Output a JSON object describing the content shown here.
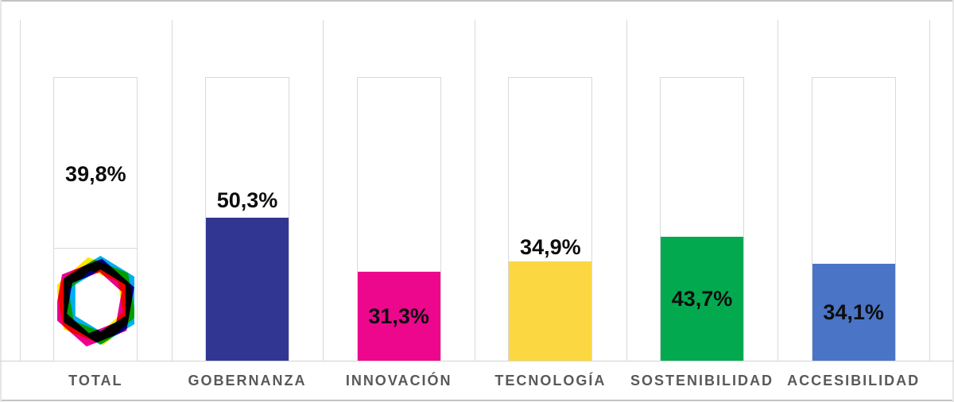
{
  "chart_data": {
    "type": "bar",
    "title": "",
    "xlabel": "",
    "ylabel": "",
    "ylim": [
      0,
      100
    ],
    "unit": "%",
    "decimal_separator": ",",
    "legend": "none",
    "grid": "column dividers with 100% outline box per category",
    "categories": [
      "TOTAL",
      "GOBERNANZA",
      "INNOVACIÓN",
      "TECNOLOGÍA",
      "SOSTENIBILIDAD",
      "ACCESIBILIDAD"
    ],
    "values": [
      39.8,
      50.3,
      31.3,
      34.9,
      43.7,
      34.1
    ],
    "value_labels": [
      "39,8%",
      "50,3%",
      "31,3%",
      "34,9%",
      "43,7%",
      "34,1%"
    ],
    "bars": [
      {
        "category": "TOTAL",
        "value": 39.8,
        "label": "39,8%",
        "fill": "logo",
        "label_placement": "above",
        "label_gap": 79
      },
      {
        "category": "GOBERNANZA",
        "value": 50.3,
        "label": "50,3%",
        "fill": "#323693",
        "label_placement": "above",
        "label_gap": 8
      },
      {
        "category": "INNOVACIÓN",
        "value": 31.3,
        "label": "31,3%",
        "fill": "#EC078D",
        "label_placement": "inside"
      },
      {
        "category": "TECNOLOGÍA",
        "value": 34.9,
        "label": "34,9%",
        "fill": "#FBD841",
        "label_placement": "above",
        "label_gap": 4
      },
      {
        "category": "SOSTENIBILIDAD",
        "value": 43.7,
        "label": "43,7%",
        "fill": "#03A94F",
        "label_placement": "inside"
      },
      {
        "category": "ACCESIBILIDAD",
        "value": 34.1,
        "label": "34,1%",
        "fill": "#4A74C6",
        "label_placement": "inside"
      }
    ]
  },
  "logo": {
    "name": "hexagon-ribbon-logo",
    "description": "hexagonal ring of overlapping cyan, magenta and yellow ribbons shown in the TOTAL column",
    "colors": {
      "cyan": "#00AEEF",
      "magenta": "#EC008C",
      "yellow": "#FFE800"
    }
  },
  "colors": {
    "background": "#FFFFFF",
    "outline_box_border": "#D9D9D9",
    "column_divider": "#D9D9D9",
    "axis_line": "#D2D2D2",
    "frame_top_bottom": "#C3C3C3",
    "frame_sides": "#E6E6E6",
    "value_text": "#0D0D0D",
    "category_text": "#58595B"
  }
}
